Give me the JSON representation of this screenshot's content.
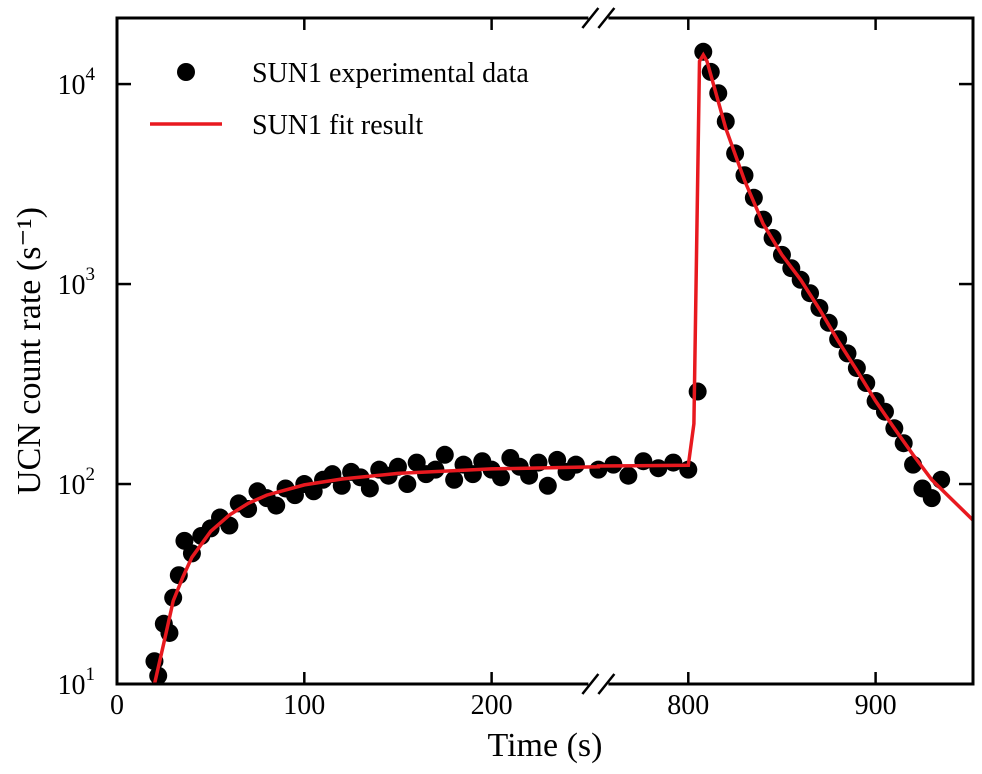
{
  "chart_data": {
    "type": "scatter",
    "xlabel": "Time (s)",
    "ylabel": "UCN count rate (s⁻¹)",
    "log_y": true,
    "legend": "upper left",
    "xlim_segments": [
      [
        0,
        257
      ],
      [
        752,
        952
      ]
    ],
    "xticks": [
      0,
      100,
      200,
      800,
      900
    ],
    "ylim": [
      10,
      21400
    ],
    "yticks": [
      {
        "value": 10,
        "label": "10",
        "exponent": "1"
      },
      {
        "value": 100,
        "label": "10",
        "exponent": "2"
      },
      {
        "value": 1000,
        "label": "10",
        "exponent": "3"
      },
      {
        "value": 10000,
        "label": "10",
        "exponent": "4"
      }
    ],
    "series": [
      {
        "name": "SUN1 experimental data",
        "kind": "points",
        "color": "#000000",
        "x": [
          20,
          22,
          25,
          28,
          30,
          33,
          36,
          40,
          45,
          50,
          55,
          60,
          65,
          70,
          75,
          80,
          85,
          90,
          95,
          100,
          105,
          110,
          115,
          120,
          125,
          130,
          135,
          140,
          145,
          150,
          155,
          160,
          165,
          170,
          175,
          180,
          185,
          190,
          195,
          200,
          205,
          210,
          215,
          220,
          225,
          230,
          235,
          240,
          245,
          752,
          760,
          768,
          776,
          784,
          792,
          800,
          805,
          808,
          812,
          816,
          820,
          825,
          830,
          835,
          840,
          845,
          850,
          855,
          860,
          865,
          870,
          875,
          880,
          885,
          890,
          895,
          900,
          905,
          910,
          915,
          920,
          925,
          930,
          935
        ],
        "values": [
          13,
          11,
          20,
          18,
          27,
          35,
          52,
          45,
          55,
          60,
          68,
          62,
          80,
          75,
          92,
          85,
          78,
          95,
          88,
          100,
          92,
          105,
          112,
          98,
          115,
          108,
          95,
          118,
          110,
          122,
          100,
          128,
          112,
          118,
          140,
          105,
          125,
          112,
          130,
          118,
          108,
          135,
          122,
          110,
          128,
          98,
          132,
          115,
          125,
          118,
          125,
          110,
          130,
          120,
          128,
          118,
          290,
          14500,
          11500,
          9000,
          6500,
          4500,
          3500,
          2700,
          2100,
          1700,
          1400,
          1200,
          1050,
          900,
          760,
          640,
          530,
          450,
          380,
          320,
          260,
          230,
          190,
          160,
          125,
          95,
          85,
          105
        ]
      },
      {
        "name": "SUN1 fit result",
        "kind": "line",
        "color": "#e8191f",
        "x": [
          20,
          25,
          30,
          35,
          40,
          50,
          60,
          70,
          80,
          100,
          120,
          150,
          200,
          257,
          752,
          800,
          803,
          806,
          808,
          810,
          820,
          830,
          840,
          850,
          860,
          870,
          880,
          890,
          900,
          910,
          920,
          930,
          940,
          952
        ],
        "values": [
          10,
          16,
          26,
          34,
          43,
          58,
          70,
          80,
          88,
          99,
          106,
          113,
          119,
          122,
          123,
          124,
          200,
          13000,
          14000,
          13000,
          6000,
          3300,
          2000,
          1400,
          1050,
          750,
          520,
          370,
          260,
          190,
          140,
          105,
          85,
          66
        ]
      }
    ]
  }
}
